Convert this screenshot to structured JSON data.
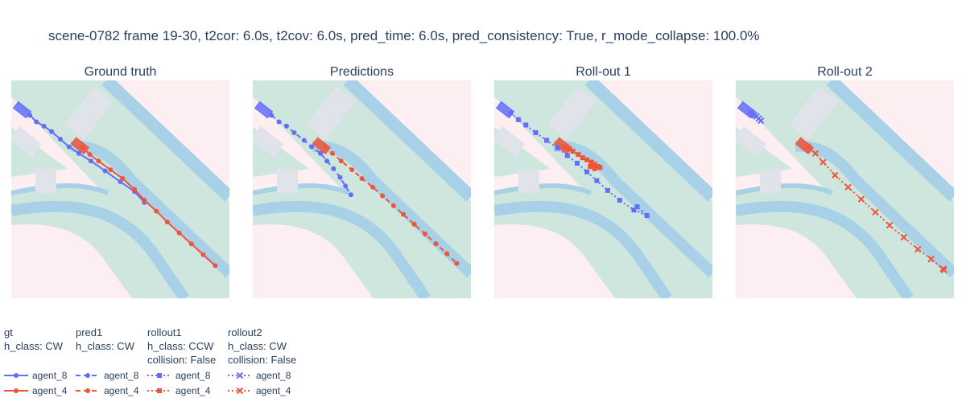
{
  "chart_data": {
    "type": "line",
    "title": "scene-0782 frame 19-30, t2cor: 6.0s, t2cov: 6.0s, pred_time: 6.0s, pred_consistency: True, r_mode_collapse: 100.0%",
    "colors": {
      "agent_8": "#636efa",
      "agent_4": "#ef553b",
      "drivable": "#cfe6df",
      "lane_edge": "#a8d1e7",
      "offroad": "#fdeef2",
      "crosswalk": "#e1e3ea"
    },
    "map_extent": {
      "x": [
        0,
        100
      ],
      "y": [
        0,
        100
      ]
    },
    "agents": [
      {
        "name": "agent_8",
        "box": {
          "x": 5,
          "y": 86.5,
          "heading_deg": 38
        }
      },
      {
        "name": "agent_4",
        "box": {
          "x": 31.5,
          "y": 70,
          "heading_deg": 38
        }
      }
    ],
    "panels": [
      {
        "title": "Ground truth",
        "series": [
          {
            "agent": "agent_8",
            "dash": "solid",
            "marker": "circle",
            "x": [
              8.5,
              11.5,
              15,
              18.5,
              22.5,
              26.5,
              31,
              36.5,
              43,
              50,
              56.5,
              61
            ],
            "y": [
              84,
              81,
              79,
              76.5,
              73,
              69.5,
              66.5,
              63,
              58.5,
              53.5,
              49,
              44
            ]
          },
          {
            "agent": "agent_4",
            "dash": "solid",
            "marker": "circle",
            "x": [
              32.5,
              36,
              40,
              45.5,
              51,
              56.5,
              61,
              66.5,
              71.5,
              77,
              82.5,
              88,
              93.5
            ],
            "y": [
              69.5,
              66,
              63,
              59,
              55,
              50,
              45,
              40,
              35,
              30,
              25,
              20,
              15
            ]
          }
        ]
      },
      {
        "title": "Predictions",
        "series": [
          {
            "agent": "agent_8",
            "dash": "dash",
            "marker": "circle",
            "x": [
              8.5,
              12,
              15.5,
              19,
              23.5,
              27,
              31,
              34,
              37,
              40,
              42.5,
              45
            ],
            "y": [
              84,
              81,
              79,
              76,
              72.5,
              69.5,
              66.5,
              63,
              59.5,
              55.5,
              51.5,
              47.5
            ]
          },
          {
            "agent": "agent_4",
            "dash": "dash",
            "marker": "circle",
            "x": [
              33,
              36.5,
              40.5,
              45.5,
              50,
              55,
              59.5,
              64.5,
              69,
              74,
              79,
              84,
              89,
              93.5
            ],
            "y": [
              69.5,
              66.5,
              63,
              59,
              55,
              51,
              47,
              42.5,
              38.5,
              34,
              29.5,
              25,
              20.5,
              16
            ]
          }
        ]
      },
      {
        "title": "Roll-out 1",
        "series": [
          {
            "agent": "agent_8",
            "dash": "dot",
            "marker": "square",
            "x": [
              7.5,
              11,
              14.5,
              19,
              24,
              29,
              33.5,
              38,
              42.5,
              47,
              52,
              57.5,
              64,
              70,
              65.5
            ],
            "y": [
              85,
              82,
              79.5,
              76,
              72.5,
              69,
              65.5,
              62,
              58,
              54,
              49.5,
              45,
              40.5,
              38,
              42
            ]
          },
          {
            "agent": "agent_4",
            "dash": "dot",
            "marker": "square",
            "x": [
              32,
              34,
              36,
              38.5,
              40.5,
              42.5,
              44.5,
              46,
              47.5,
              48.5,
              46,
              44
            ],
            "y": [
              69.5,
              68.5,
              67.5,
              66,
              64.5,
              63.5,
              62.5,
              61.5,
              60.5,
              60,
              59.5,
              60.5
            ]
          }
        ]
      },
      {
        "title": "Roll-out 2",
        "series": [
          {
            "agent": "agent_8",
            "dash": "dot",
            "marker": "x",
            "x": [
              6.5,
              7.5,
              8.5,
              9.5,
              10.5,
              11.5
            ],
            "y": [
              85.5,
              84.5,
              84,
              83.5,
              82.5,
              81.5
            ]
          },
          {
            "agent": "agent_4",
            "dash": "dot",
            "marker": "x",
            "x": [
              33,
              36.5,
              40,
              45.5,
              51.5,
              57.5,
              64,
              70.5,
              77,
              83.5,
              89.5,
              95.5,
              95,
              89.5
            ],
            "y": [
              69.5,
              66.5,
              62.5,
              56.5,
              51,
              45.5,
              39.5,
              33.5,
              28,
              22.5,
              18,
              13,
              13.5,
              18
            ]
          }
        ]
      }
    ],
    "legend": {
      "placement": "bottom-left",
      "groups": [
        {
          "lines": [
            "gt",
            "h_class: CW"
          ],
          "entries": [
            {
              "agent": "agent_8",
              "dash": "solid",
              "marker": "circle"
            },
            {
              "agent": "agent_4",
              "dash": "solid",
              "marker": "circle"
            }
          ]
        },
        {
          "lines": [
            "pred1",
            "h_class: CW"
          ],
          "entries": [
            {
              "agent": "agent_8",
              "dash": "dash",
              "marker": "circle"
            },
            {
              "agent": "agent_4",
              "dash": "dash",
              "marker": "circle"
            }
          ]
        },
        {
          "lines": [
            "rollout1",
            "h_class: CCW",
            "collision: False"
          ],
          "entries": [
            {
              "agent": "agent_8",
              "dash": "dot",
              "marker": "square"
            },
            {
              "agent": "agent_4",
              "dash": "dot",
              "marker": "square"
            }
          ]
        },
        {
          "lines": [
            "rollout2",
            "h_class: CW",
            "collision: False"
          ],
          "entries": [
            {
              "agent": "agent_8",
              "dash": "dot",
              "marker": "x"
            },
            {
              "agent": "agent_4",
              "dash": "dot",
              "marker": "x"
            }
          ]
        }
      ]
    }
  }
}
